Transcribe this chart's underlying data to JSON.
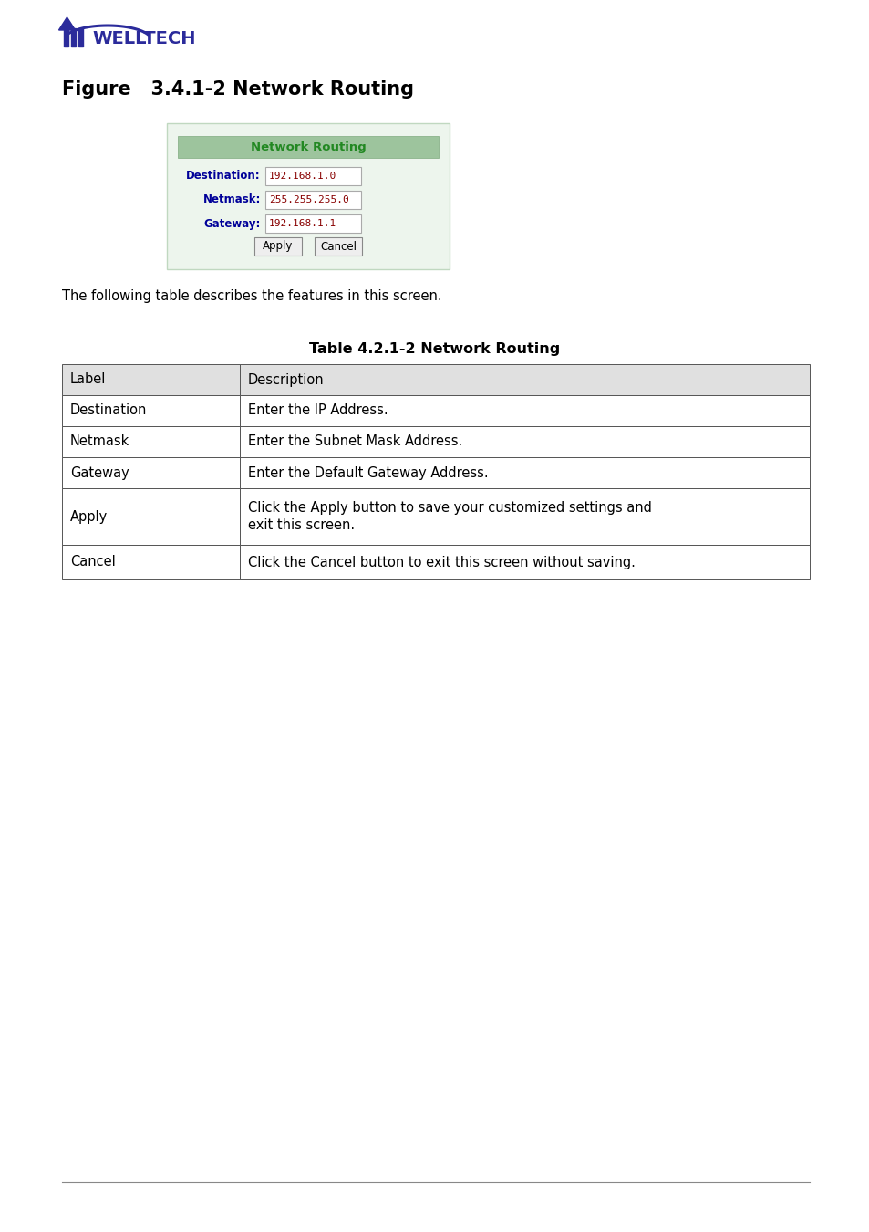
{
  "figure_title": "Figure   3.4.1-2 Network Routing",
  "table_title": "Table 4.2.1-2 Network Routing",
  "following_text": "The following table describes the features in this screen.",
  "network_routing_title": "Network Routing",
  "fields": [
    {
      "label": "Destination:",
      "value": "192.168.1.0"
    },
    {
      "label": "Netmask:",
      "value": "255.255.255.0"
    },
    {
      "label": "Gateway:",
      "value": "192.168.1.1"
    }
  ],
  "buttons": [
    "Apply",
    "Cancel"
  ],
  "table_rows": [
    [
      "Label",
      "Description"
    ],
    [
      "Destination",
      "Enter the IP Address."
    ],
    [
      "Netmask",
      "Enter the Subnet Mask Address."
    ],
    [
      "Gateway",
      "Enter the Default Gateway Address."
    ],
    [
      "Apply",
      "Click the Apply button to save your customized settings and\nexit this screen."
    ],
    [
      "Cancel",
      "Click the Cancel button to exit this screen without saving."
    ]
  ],
  "colors": {
    "background": "#ffffff",
    "header_row_bg": "#e0e0e0",
    "table_border": "#555555",
    "network_routing_header_bg": "#9dc49d",
    "network_routing_title_color": "#228822",
    "field_label_color": "#000099",
    "field_value_color": "#880000",
    "input_border": "#aaaaaa",
    "button_border": "#888888",
    "button_bg": "#eeeeee",
    "welltech_blue": "#2b2b9b",
    "text_color": "#000000",
    "outer_box_bg": "#edf5ed",
    "outer_box_border": "#c0d8c0"
  }
}
